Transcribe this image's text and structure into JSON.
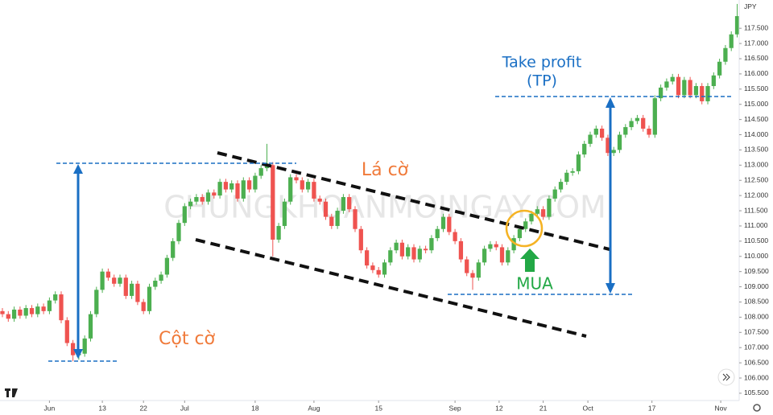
{
  "chart_data": {
    "type": "candlestick",
    "currency": "JPY",
    "watermark": "CHUNGKHOANMOINGAY.COM",
    "annotations": {
      "flag": "Lá cờ",
      "pole": "Cột cờ",
      "take_profit": "Take profit",
      "tp": "(TP)",
      "buy": "MUA"
    },
    "up_color": "#4caf50",
    "down_color": "#ef5350",
    "open": [
      108.2,
      108.1,
      107.95,
      108.25,
      108.05,
      108.3,
      108.1,
      108.35,
      108.2,
      108.55,
      108.75,
      107.9,
      107.15,
      106.75,
      106.8,
      107.3,
      108.1,
      108.9,
      109.5,
      109.3,
      109.1,
      109.3,
      108.7,
      109.1,
      108.5,
      108.2,
      109.0,
      109.2,
      109.4,
      109.95,
      110.5,
      111.1,
      111.65,
      111.8,
      111.95,
      111.8,
      112.1,
      112.0,
      112.45,
      112.2,
      112.4,
      111.9,
      112.5,
      112.2,
      112.65,
      112.9,
      113.0,
      110.55,
      111.0,
      111.8,
      112.6,
      112.5,
      112.2,
      112.45,
      111.9,
      111.8,
      111.3,
      111.0,
      111.5,
      111.95,
      111.55,
      110.9,
      110.2,
      109.7,
      109.55,
      109.4,
      109.8,
      110.2,
      110.45,
      110.0,
      110.3,
      109.9,
      110.25,
      110.2,
      110.6,
      110.9,
      111.3,
      110.8,
      110.5,
      109.9,
      109.45,
      109.3,
      109.8,
      110.25,
      110.4,
      110.3,
      109.8,
      110.2,
      110.6,
      110.9,
      111.15,
      111.4,
      111.55,
      111.3,
      111.9,
      112.2,
      112.45,
      112.75,
      112.8,
      113.35,
      113.7,
      114.0,
      114.2,
      113.9,
      113.4,
      113.5,
      114.0,
      114.25,
      114.45,
      114.55,
      114.2,
      114.0,
      115.2,
      115.55,
      115.75,
      115.9,
      115.3,
      115.8,
      115.3,
      115.6,
      115.1,
      115.6,
      115.95,
      116.4,
      116.85,
      117.3
    ],
    "high": [
      108.3,
      108.2,
      108.35,
      108.35,
      108.4,
      108.4,
      108.45,
      108.45,
      108.65,
      108.85,
      108.85,
      108.0,
      107.25,
      106.9,
      107.4,
      108.2,
      109.0,
      109.6,
      109.6,
      109.4,
      109.4,
      109.4,
      109.2,
      109.2,
      108.6,
      109.1,
      109.3,
      109.5,
      110.05,
      110.6,
      111.2,
      111.75,
      111.9,
      112.05,
      112.05,
      112.2,
      112.2,
      112.55,
      112.55,
      112.5,
      112.5,
      112.6,
      112.6,
      112.75,
      113.0,
      113.7,
      113.1,
      111.1,
      111.9,
      112.7,
      112.7,
      112.6,
      112.55,
      112.55,
      112.0,
      111.9,
      111.4,
      111.6,
      112.05,
      112.05,
      111.65,
      111.0,
      110.3,
      109.8,
      109.65,
      109.9,
      110.3,
      110.55,
      110.55,
      110.4,
      110.4,
      110.35,
      110.35,
      110.7,
      111.0,
      111.4,
      111.4,
      110.9,
      110.6,
      110.0,
      109.55,
      109.9,
      110.35,
      110.5,
      110.5,
      110.4,
      110.3,
      110.7,
      111.0,
      111.25,
      111.5,
      111.65,
      111.65,
      112.0,
      112.3,
      112.55,
      112.85,
      112.9,
      113.45,
      113.8,
      114.1,
      114.3,
      114.3,
      114.0,
      113.6,
      114.1,
      114.35,
      114.55,
      114.65,
      114.65,
      114.3,
      115.3,
      115.65,
      115.85,
      116.0,
      116.0,
      115.9,
      115.9,
      115.7,
      115.7,
      115.7,
      116.05,
      116.5,
      116.95,
      117.4,
      118.3
    ],
    "low": [
      108.0,
      107.85,
      107.85,
      107.95,
      107.95,
      108.0,
      108.0,
      108.1,
      108.1,
      108.45,
      107.8,
      107.05,
      106.55,
      106.6,
      106.7,
      107.2,
      108.0,
      108.8,
      109.2,
      109.0,
      109.0,
      108.6,
      108.6,
      108.4,
      108.1,
      108.1,
      108.9,
      109.1,
      109.3,
      109.85,
      110.4,
      111.0,
      111.55,
      111.7,
      111.7,
      111.7,
      111.9,
      111.9,
      112.1,
      112.1,
      111.8,
      111.8,
      112.1,
      112.1,
      112.55,
      112.8,
      110.0,
      110.45,
      110.9,
      111.7,
      112.4,
      112.1,
      112.1,
      111.8,
      111.7,
      111.2,
      110.9,
      110.9,
      111.4,
      111.45,
      110.8,
      110.1,
      109.6,
      109.45,
      109.3,
      109.3,
      109.7,
      110.1,
      109.9,
      109.9,
      109.8,
      109.8,
      110.1,
      110.1,
      110.5,
      110.8,
      110.7,
      110.4,
      109.8,
      109.35,
      108.9,
      109.2,
      109.7,
      110.15,
      110.2,
      109.7,
      109.7,
      110.1,
      110.5,
      110.8,
      111.05,
      111.3,
      111.2,
      111.2,
      111.8,
      112.1,
      112.35,
      112.65,
      112.7,
      113.25,
      113.6,
      113.9,
      113.8,
      113.3,
      113.3,
      113.4,
      113.9,
      114.15,
      114.35,
      114.1,
      113.9,
      113.9,
      115.1,
      115.45,
      115.65,
      115.2,
      115.2,
      115.2,
      115.2,
      115.0,
      115.0,
      115.5,
      115.85,
      116.3,
      116.75,
      117.2
    ],
    "close": [
      108.1,
      107.95,
      108.25,
      108.05,
      108.3,
      108.1,
      108.35,
      108.2,
      108.55,
      108.75,
      107.9,
      107.15,
      106.75,
      106.8,
      107.3,
      108.1,
      108.9,
      109.5,
      109.3,
      109.1,
      109.3,
      108.7,
      109.1,
      108.5,
      108.2,
      109.0,
      109.2,
      109.4,
      109.95,
      110.5,
      111.1,
      111.65,
      111.8,
      111.95,
      111.8,
      112.1,
      112.0,
      112.45,
      112.2,
      112.4,
      111.9,
      112.5,
      112.2,
      112.65,
      112.9,
      113.0,
      110.55,
      111.0,
      111.8,
      112.6,
      112.5,
      112.2,
      112.45,
      111.9,
      111.8,
      111.3,
      111.0,
      111.5,
      111.95,
      111.55,
      110.9,
      110.2,
      109.7,
      109.55,
      109.4,
      109.8,
      110.2,
      110.45,
      110.0,
      110.3,
      109.9,
      110.25,
      110.2,
      110.6,
      110.9,
      111.3,
      110.8,
      110.5,
      109.9,
      109.45,
      109.3,
      109.8,
      110.25,
      110.4,
      110.3,
      109.8,
      110.2,
      110.6,
      110.9,
      111.15,
      111.4,
      111.55,
      111.3,
      111.9,
      112.2,
      112.45,
      112.75,
      112.8,
      113.35,
      113.7,
      114.0,
      114.2,
      113.9,
      113.4,
      113.5,
      114.0,
      114.25,
      114.45,
      114.55,
      114.2,
      114.0,
      115.2,
      115.55,
      115.75,
      115.9,
      115.3,
      115.8,
      115.3,
      115.6,
      115.1,
      115.6,
      115.95,
      116.4,
      116.85,
      117.3,
      117.9
    ],
    "xlim": [
      -0.41,
      125.34
    ],
    "xticks": [
      {
        "value": 8,
        "label": "Jun"
      },
      {
        "value": 17,
        "label": "13"
      },
      {
        "value": 24,
        "label": "22"
      },
      {
        "value": 31,
        "label": "Jul"
      },
      {
        "value": 43,
        "label": "18"
      },
      {
        "value": 53,
        "label": "Aug"
      },
      {
        "value": 64,
        "label": "15"
      },
      {
        "value": 77,
        "label": "Sep"
      },
      {
        "value": 84.5,
        "label": "12"
      },
      {
        "value": 92,
        "label": "21"
      },
      {
        "value": 99.6,
        "label": "Oct"
      },
      {
        "value": 110.5,
        "label": "17"
      },
      {
        "value": 122.2,
        "label": "Nov"
      }
    ],
    "ylim": [
      105.26,
      118.43
    ],
    "yticks": [
      {
        "value": 105.5,
        "label": "105.500"
      },
      {
        "value": 106,
        "label": "106.000"
      },
      {
        "value": 106.5,
        "label": "106.500"
      },
      {
        "value": 107,
        "label": "107.000"
      },
      {
        "value": 107.5,
        "label": "107.500"
      },
      {
        "value": 108,
        "label": "108.000"
      },
      {
        "value": 108.5,
        "label": "108.500"
      },
      {
        "value": 109,
        "label": "109.000"
      },
      {
        "value": 109.5,
        "label": "109.500"
      },
      {
        "value": 110,
        "label": "110.000"
      },
      {
        "value": 110.5,
        "label": "110.500"
      },
      {
        "value": 111,
        "label": "111.000"
      },
      {
        "value": 111.5,
        "label": "111.500"
      },
      {
        "value": 112,
        "label": "112.000"
      },
      {
        "value": 112.5,
        "label": "112.500"
      },
      {
        "value": 113,
        "label": "113.000"
      },
      {
        "value": 113.5,
        "label": "113.500"
      },
      {
        "value": 114,
        "label": "114.000"
      },
      {
        "value": 114.5,
        "label": "114.500"
      },
      {
        "value": 115,
        "label": "115.000"
      },
      {
        "value": 115.5,
        "label": "115.500"
      },
      {
        "value": 116,
        "label": "116.000"
      },
      {
        "value": 116.5,
        "label": "116.500"
      },
      {
        "value": 117,
        "label": "117.000"
      },
      {
        "value": 117.5,
        "label": "117.500"
      }
    ]
  }
}
